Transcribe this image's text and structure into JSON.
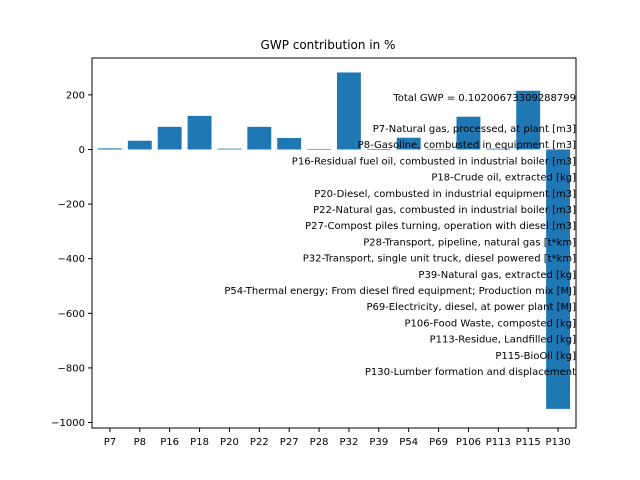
{
  "chart_data": {
    "type": "bar",
    "title": "GWP contribution in %",
    "xlabel": "",
    "ylabel": "",
    "categories": [
      "P7",
      "P8",
      "P16",
      "P18",
      "P20",
      "P22",
      "P27",
      "P28",
      "P32",
      "P39",
      "P54",
      "P69",
      "P106",
      "P113",
      "P115",
      "P130"
    ],
    "values": [
      4,
      32,
      83,
      123,
      3,
      83,
      42,
      2,
      282,
      1,
      43,
      2,
      120,
      3,
      215,
      -950
    ],
    "ylim": [
      -1020,
      335
    ],
    "yticks": [
      -1000,
      -800,
      -600,
      -400,
      -200,
      0,
      200
    ],
    "bar_color": "#1f77b4",
    "grid": false,
    "annotations": {
      "total": "Total GWP = 0.102006733092887​99",
      "legend_lines": [
        "P7-Natural gas, processed, at plant [m3]",
        "P8-Gasoline, combusted in equipment [m3]",
        "P16-Residual fuel oil, combusted in industrial boiler [m3]",
        "P18-Crude oil, extracted [kg]",
        "P20-Diesel, combusted in industrial equipment [m3]",
        "P22-Natural gas, combusted in industrial boiler [m3]",
        "P27-Compost piles turning, operation with diesel [m3]",
        "P28-Transport, pipeline, natural gas [t*km]",
        "P32-Transport, single unit truck, diesel powered [t*km]",
        "P39-Natural gas, extracted [kg]",
        "P54-Thermal energy; From diesel fired equipment; Production mix [MJ]",
        "P69-Electricity, diesel, at power plant [MJ]",
        "P106-Food Waste, composted [kg]",
        "P113-Residue, Landfilled [kg]",
        "P115-BioOil [kg]",
        "P130-Lumber formation and displacement"
      ]
    }
  }
}
